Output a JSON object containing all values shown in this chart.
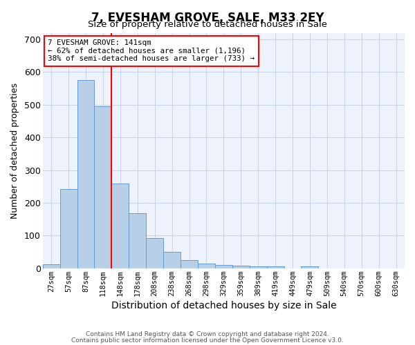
{
  "title": "7, EVESHAM GROVE, SALE, M33 2EY",
  "subtitle": "Size of property relative to detached houses in Sale",
  "xlabel": "Distribution of detached houses by size in Sale",
  "ylabel": "Number of detached properties",
  "footer_line1": "Contains HM Land Registry data © Crown copyright and database right 2024.",
  "footer_line2": "Contains public sector information licensed under the Open Government Licence v3.0.",
  "categories": [
    "27sqm",
    "57sqm",
    "87sqm",
    "118sqm",
    "148sqm",
    "178sqm",
    "208sqm",
    "238sqm",
    "268sqm",
    "298sqm",
    "329sqm",
    "359sqm",
    "389sqm",
    "419sqm",
    "449sqm",
    "479sqm",
    "509sqm",
    "540sqm",
    "570sqm",
    "600sqm",
    "630sqm"
  ],
  "values": [
    12,
    243,
    575,
    495,
    260,
    168,
    92,
    50,
    25,
    15,
    10,
    7,
    5,
    5,
    0,
    6,
    0,
    0,
    0,
    0,
    0
  ],
  "bar_color": "#b8cfe8",
  "bar_edge_color": "#6699cc",
  "red_line_index": 4,
  "annotation_line1": "7 EVESHAM GROVE: 141sqm",
  "annotation_line2": "← 62% of detached houses are smaller (1,196)",
  "annotation_line3": "38% of semi-detached houses are larger (733) →",
  "ylim": [
    0,
    720
  ],
  "yticks": [
    0,
    100,
    200,
    300,
    400,
    500,
    600,
    700
  ],
  "grid_color": "#c8d4e8",
  "background_color": "#eef2fa"
}
